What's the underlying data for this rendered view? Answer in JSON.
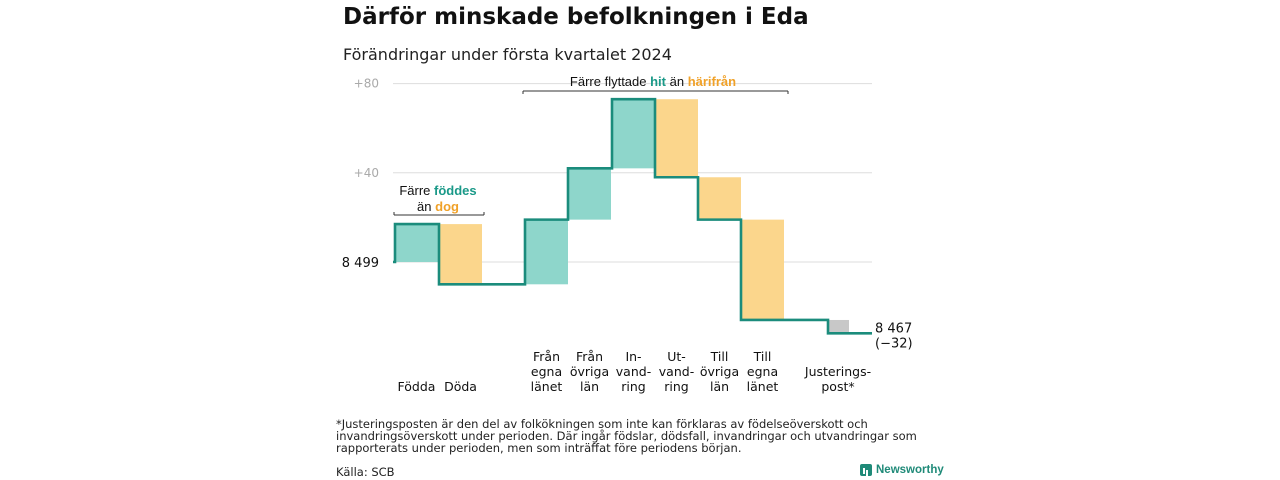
{
  "title": "Därför minskade befolkningen i Eda",
  "subtitle": "Förändringar under första kvartalet 2024",
  "colors": {
    "inflow": "#8ed6cb",
    "outflow": "#fbd68c",
    "adjust": "#c8c8c8",
    "line": "#1b8c7c",
    "teal_text": "#1a9988",
    "orange_text": "#f0a128",
    "grid": "#dddddd",
    "tick": "#aaaaaa"
  },
  "chart_data": {
    "type": "waterfall",
    "start_value": 8499,
    "start_label": "8 499",
    "end_value": 8467,
    "end_label": "8 467",
    "end_change_label": "(−32)",
    "y_ticks": [
      {
        "value": 80,
        "label": "+80"
      },
      {
        "value": 40,
        "label": "+40"
      }
    ],
    "y_range": [
      -32,
      80
    ],
    "grid": true,
    "steps": [
      {
        "label": [
          "Födda"
        ],
        "change": 17,
        "kind": "inflow"
      },
      {
        "label": [
          "Döda"
        ],
        "change": -27,
        "kind": "outflow"
      },
      {
        "label": [
          "Från",
          "egna",
          "länet"
        ],
        "change": 29,
        "kind": "inflow"
      },
      {
        "label": [
          "Från",
          "övriga",
          "län"
        ],
        "change": 23,
        "kind": "inflow"
      },
      {
        "label": [
          "In-",
          "vand-",
          "ring"
        ],
        "change": 31,
        "kind": "inflow"
      },
      {
        "label": [
          "Ut-",
          "vand-",
          "ring"
        ],
        "change": -35,
        "kind": "outflow"
      },
      {
        "label": [
          "Till",
          "övriga",
          "län"
        ],
        "change": -19,
        "kind": "outflow"
      },
      {
        "label": [
          "Till",
          "egna",
          "länet"
        ],
        "change": -45,
        "kind": "outflow"
      },
      {
        "label": [
          "Justerings-",
          "post*"
        ],
        "change": -6,
        "kind": "adjust"
      }
    ],
    "annotations": [
      {
        "lines": [
          [
            {
              "text": "Färre ",
              "color": "dark"
            },
            {
              "text": "föddes",
              "color": "teal",
              "bold": true
            }
          ],
          [
            {
              "text": "än ",
              "color": "dark"
            },
            {
              "text": "dog",
              "color": "orange",
              "bold": true
            }
          ]
        ],
        "span": [
          0,
          1
        ]
      },
      {
        "lines": [
          [
            {
              "text": "Färre flyttade ",
              "color": "dark"
            },
            {
              "text": "hit",
              "color": "teal",
              "bold": true
            },
            {
              "text": " än ",
              "color": "dark"
            },
            {
              "text": "härifrån",
              "color": "orange",
              "bold": true
            }
          ]
        ],
        "span": [
          2,
          7
        ]
      }
    ]
  },
  "footnote": "*Justeringsposten är den del av folkökningen som inte kan förklaras av födelseöverskott och invandringsöverskott under perioden. Där ingår födslar, dödsfall, invandringar och utvandringar som rapporterats under perioden, men som inträffat före periodens början.",
  "source": "Källa: SCB",
  "brand": "Newsworthy"
}
